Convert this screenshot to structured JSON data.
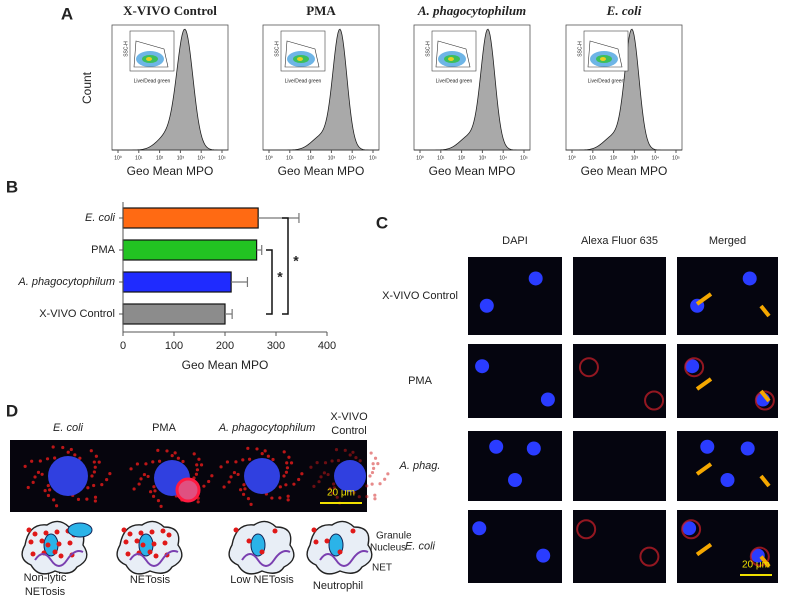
{
  "panel_a": {
    "letter": "A",
    "y_label": "Count",
    "x_ticks": [
      "10⁰",
      "10¹",
      "10²",
      "10³",
      "10⁴",
      "10⁵"
    ],
    "plots": [
      {
        "title": "X-VIVO Control",
        "x_label": "Geo Mean MPO",
        "inset_y": "SSC-H",
        "inset_x": "Live/Dead green"
      },
      {
        "title": "PMA",
        "x_label": "Geo Mean MPO",
        "inset_y": "SSC-H",
        "inset_x": "Live/Dead green"
      },
      {
        "title": "A. phagocytophilum",
        "x_label": "Geo Mean MPO",
        "inset_y": "SSC-H",
        "inset_x": "Live/Dead green"
      },
      {
        "title": "E. coli",
        "x_label": "Geo Mean MPO",
        "inset_y": "SSC-H",
        "inset_x": "Live/Dead green"
      }
    ]
  },
  "chart_data": {
    "type": "hbar",
    "letter": "B",
    "categories": [
      "E. coli",
      "PMA",
      "A. phagocytophilum",
      "X-VIVO Control"
    ],
    "values": [
      265,
      262,
      212,
      200
    ],
    "errors": [
      80,
      10,
      32,
      14
    ],
    "colors": [
      "#ff6a13",
      "#22c322",
      "#1f2bff",
      "#8c8c8c"
    ],
    "xlim": [
      0,
      400
    ],
    "xticks": [
      0,
      100,
      200,
      300,
      400
    ],
    "x_label": "Geo Mean MPO",
    "significance": [
      "*",
      "*"
    ]
  },
  "panel_c": {
    "letter": "C",
    "columns": [
      "DAPI",
      "Alexa Fluor 635",
      "Merged"
    ],
    "rows": [
      "X-VIVO Control",
      "PMA",
      "A. phag.",
      "E. coli"
    ],
    "scale": "20 μm"
  },
  "panel_d": {
    "letter": "D",
    "columns": [
      "E. coli",
      "PMA",
      "A. phagocytophilum",
      "X-VIVO Control"
    ],
    "scale": "20 μm",
    "cells": [
      "Non-lytic NETosis",
      "NETosis",
      "Low NETosis",
      "Neutrophil"
    ],
    "parts": [
      "Nucleus",
      "Granule",
      "NET"
    ]
  }
}
